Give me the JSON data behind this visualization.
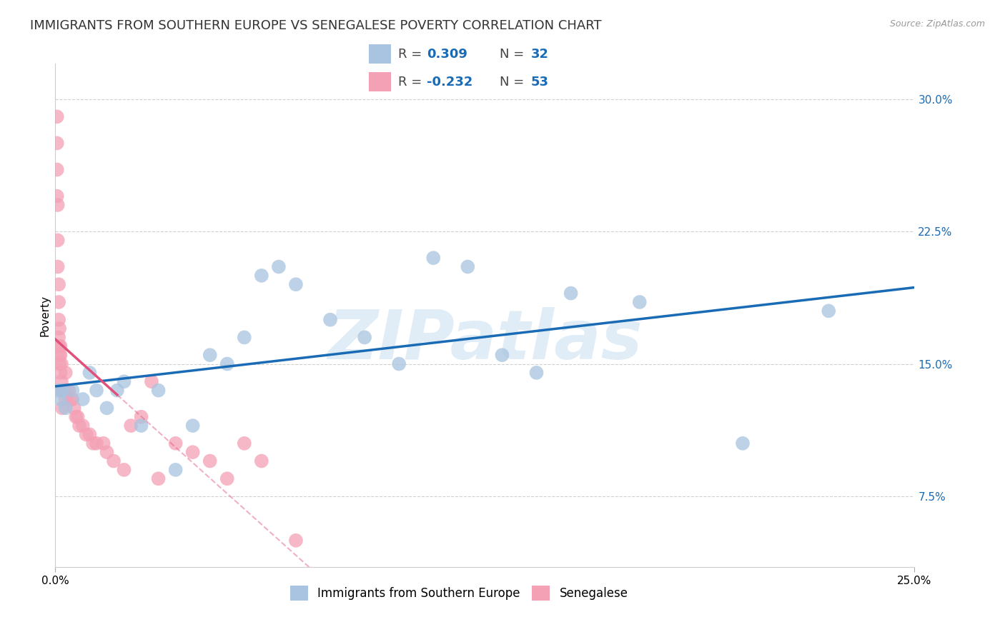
{
  "title": "IMMIGRANTS FROM SOUTHERN EUROPE VS SENEGALESE POVERTY CORRELATION CHART",
  "source": "Source: ZipAtlas.com",
  "ylabel": "Poverty",
  "xlim": [
    0.0,
    25.0
  ],
  "ylim": [
    3.5,
    32.0
  ],
  "watermark": "ZIPatlas",
  "legend_labels": [
    "Immigrants from Southern Europe",
    "Senegalese"
  ],
  "blue_R": "0.309",
  "blue_N": "32",
  "pink_R": "-0.232",
  "pink_N": "53",
  "blue_color": "#a8c4e0",
  "pink_color": "#f4a0b5",
  "blue_line_color": "#1a6bb5",
  "pink_line_color": "#e0507a",
  "blue_scatter_x": [
    0.1,
    0.15,
    0.2,
    0.3,
    0.5,
    0.8,
    1.0,
    1.2,
    1.5,
    1.8,
    2.0,
    2.5,
    3.0,
    3.5,
    4.0,
    4.5,
    5.0,
    5.5,
    6.0,
    6.5,
    7.0,
    8.0,
    9.0,
    10.0,
    11.0,
    12.0,
    13.0,
    14.0,
    15.0,
    17.0,
    20.0,
    22.5
  ],
  "blue_scatter_y": [
    13.5,
    13.0,
    13.5,
    12.5,
    13.5,
    13.0,
    14.5,
    13.5,
    12.5,
    13.5,
    14.0,
    11.5,
    13.5,
    9.0,
    11.5,
    15.5,
    15.0,
    16.5,
    20.0,
    20.5,
    19.5,
    17.5,
    16.5,
    15.0,
    21.0,
    20.5,
    15.5,
    14.5,
    19.0,
    18.5,
    10.5,
    18.0
  ],
  "pink_scatter_x": [
    0.05,
    0.05,
    0.05,
    0.05,
    0.07,
    0.07,
    0.07,
    0.1,
    0.1,
    0.1,
    0.1,
    0.12,
    0.12,
    0.12,
    0.12,
    0.15,
    0.15,
    0.15,
    0.18,
    0.18,
    0.2,
    0.2,
    0.25,
    0.3,
    0.3,
    0.35,
    0.4,
    0.45,
    0.5,
    0.55,
    0.6,
    0.65,
    0.7,
    0.8,
    0.9,
    1.0,
    1.1,
    1.2,
    1.4,
    1.5,
    1.7,
    2.0,
    2.2,
    2.5,
    2.8,
    3.0,
    3.5,
    4.0,
    4.5,
    5.0,
    5.5,
    6.0,
    7.0
  ],
  "pink_scatter_y": [
    29.0,
    27.5,
    26.0,
    24.5,
    24.0,
    22.0,
    20.5,
    19.5,
    18.5,
    17.5,
    16.5,
    17.0,
    16.0,
    15.5,
    15.0,
    16.0,
    15.5,
    14.5,
    15.0,
    14.0,
    13.5,
    12.5,
    13.5,
    14.5,
    13.0,
    13.5,
    13.5,
    13.0,
    13.0,
    12.5,
    12.0,
    12.0,
    11.5,
    11.5,
    11.0,
    11.0,
    10.5,
    10.5,
    10.5,
    10.0,
    9.5,
    9.0,
    11.5,
    12.0,
    14.0,
    8.5,
    10.5,
    10.0,
    9.5,
    8.5,
    10.5,
    9.5,
    5.0
  ],
  "grid_color": "#d0d0d0",
  "background_color": "#ffffff",
  "title_fontsize": 13,
  "axis_label_fontsize": 11,
  "tick_fontsize": 11,
  "legend_fontsize": 12,
  "yticks": [
    7.5,
    15.0,
    22.5,
    30.0
  ],
  "xticks": [
    0.0,
    25.0
  ],
  "pink_solid_end_x": 1.8,
  "blue_line_start_y": 13.0,
  "blue_line_end_y": 18.0
}
